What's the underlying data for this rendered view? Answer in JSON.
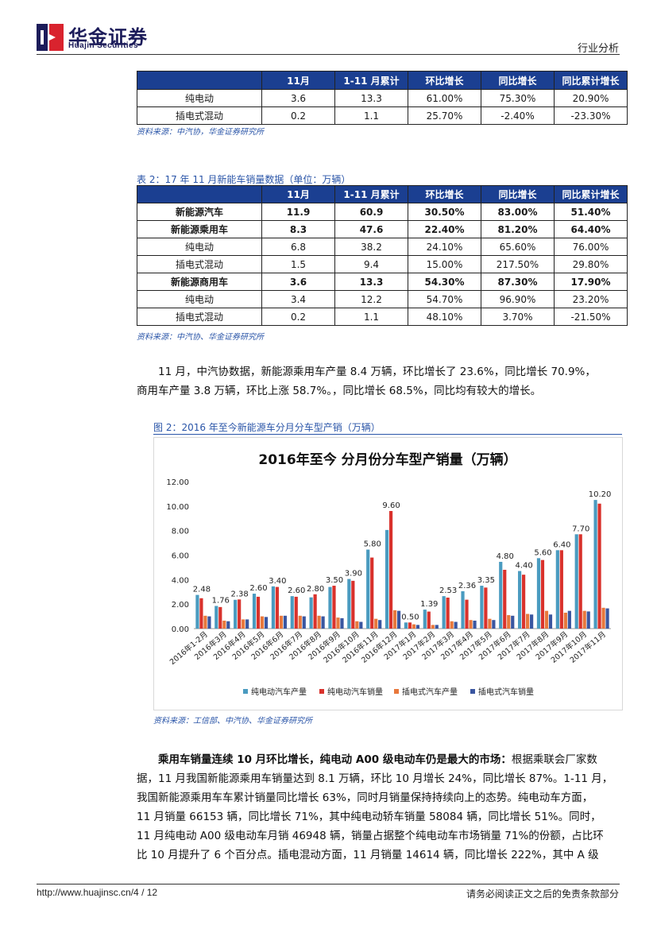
{
  "header": {
    "logo_cn": "华金证券",
    "logo_en": "Huajin Securities",
    "report_type": "行业分析"
  },
  "table1": {
    "columns": [
      "",
      "11月",
      "1-11 月累计",
      "环比增长",
      "同比增长",
      "同比累计增长"
    ],
    "rows": [
      {
        "label": "纯电动",
        "values": [
          "3.6",
          "13.3",
          "61.00%",
          "75.30%",
          "20.90%"
        ]
      },
      {
        "label": "插电式混动",
        "values": [
          "0.2",
          "1.1",
          "25.70%",
          "-2.40%",
          "-23.30%"
        ]
      }
    ],
    "source": "资料来源：中汽协，华金证券研究所"
  },
  "table2": {
    "caption": "表 2：17 年 11 月新能车销量数据（单位：万辆）",
    "columns": [
      "",
      "11月",
      "1-11 月累计",
      "环比增长",
      "同比增长",
      "同比累计增长"
    ],
    "rows": [
      {
        "label": "新能源汽车",
        "values": [
          "11.9",
          "60.9",
          "30.50%",
          "83.00%",
          "51.40%"
        ]
      },
      {
        "label": "新能源乘用车",
        "values": [
          "8.3",
          "47.6",
          "22.40%",
          "81.20%",
          "64.40%"
        ]
      },
      {
        "label": "纯电动",
        "values": [
          "6.8",
          "38.2",
          "24.10%",
          "65.60%",
          "76.00%"
        ]
      },
      {
        "label": "插电式混动",
        "values": [
          "1.5",
          "9.4",
          "15.00%",
          "217.50%",
          "29.80%"
        ]
      },
      {
        "label": "新能源商用车",
        "values": [
          "3.6",
          "13.3",
          "54.30%",
          "87.30%",
          "17.90%"
        ]
      },
      {
        "label": "纯电动",
        "values": [
          "3.4",
          "12.2",
          "54.70%",
          "96.90%",
          "23.20%"
        ]
      },
      {
        "label": "插电式混动",
        "values": [
          "0.2",
          "1.1",
          "48.10%",
          "3.70%",
          "-21.50%"
        ]
      }
    ],
    "source": "资料来源：中汽协、华金证券研究所"
  },
  "para1": {
    "line1": "11 月，中汽协数据，新能源乘用车产量 8.4 万辆，环比增长了 23.6%，同比增长 70.9%，",
    "line2": "商用车产量 3.8 万辆，环比上涨 58.7%。，同比增长 68.5%，同比均有较大的增长。"
  },
  "figure": {
    "caption": "图 2：2016 年至今新能源车分月分车型产销（万辆）",
    "source": "资料来源：工信部、中汽协、华金证券研究所"
  },
  "chart_data": {
    "type": "bar",
    "title": "2016年至今 分月份分车型产销量（万辆）",
    "categories": [
      "2016年1-2月",
      "2016年3月",
      "2016年4月",
      "2016年5月",
      "2016年6月",
      "2016年7月",
      "2016年8月",
      "2016年9月",
      "2016年10月",
      "2016年11月",
      "2016年12月",
      "2017年1月",
      "2017年2月",
      "2017年3月",
      "2017年4月",
      "2017年5月",
      "2017年6月",
      "2017年7月",
      "2017年8月",
      "2017年9月",
      "2017年10月",
      "2017年11月"
    ],
    "series": [
      {
        "name": "纯电动汽车产量",
        "color": "#4a9bc0",
        "values": [
          2.75,
          1.85,
          2.35,
          2.85,
          3.45,
          2.65,
          2.55,
          3.4,
          4.05,
          6.45,
          8.05,
          0.5,
          1.55,
          2.65,
          3.05,
          3.5,
          5.45,
          4.7,
          5.75,
          6.4,
          7.7,
          10.5
        ]
      },
      {
        "name": "纯电动汽车销量",
        "color": "#d9322c",
        "values": [
          2.48,
          1.76,
          2.38,
          2.6,
          3.4,
          2.6,
          2.8,
          3.5,
          3.9,
          5.8,
          9.6,
          0.5,
          1.39,
          2.53,
          2.36,
          3.35,
          4.8,
          4.4,
          5.6,
          6.4,
          7.7,
          10.2
        ]
      },
      {
        "name": "插电式汽车产量",
        "color": "#e8783c",
        "values": [
          1.05,
          0.65,
          0.75,
          1.0,
          1.05,
          1.05,
          1.05,
          0.9,
          0.6,
          0.8,
          1.5,
          0.35,
          0.3,
          0.6,
          0.7,
          0.8,
          1.1,
          1.2,
          1.45,
          1.3,
          1.45,
          1.7
        ]
      },
      {
        "name": "插电式汽车销量",
        "color": "#3a56a0",
        "values": [
          1.0,
          0.6,
          0.75,
          0.95,
          1.05,
          1.0,
          1.0,
          0.85,
          0.55,
          0.7,
          1.45,
          0.3,
          0.3,
          0.55,
          0.65,
          0.7,
          1.05,
          1.15,
          1.15,
          1.45,
          1.4,
          1.65
        ]
      }
    ],
    "data_labels": [
      "2.48",
      "1.76",
      "2.38",
      "2.60",
      "3.40",
      "2.60",
      "2.80",
      "3.50",
      "3.90",
      "5.80",
      "9.60",
      "0.50",
      "1.39",
      "2.53",
      "2.36",
      "3.35",
      "4.80",
      "4.40",
      "5.60",
      "6.40",
      "7.70",
      "10.20"
    ],
    "y_ticks": [
      "0.00",
      "2.00",
      "4.00",
      "6.00",
      "8.00",
      "10.00",
      "12.00"
    ],
    "ylim": [
      0,
      12
    ],
    "grid": false,
    "legend": "bottom"
  },
  "para2": {
    "lead": "乘用车销量连续 10 月环比增长，纯电动 A00 级电动车仍是最大的市场：",
    "lines": [
      "根据乘联会厂家数",
      "据，11 月我国新能源乘用车销量达到 8.1 万辆，环比 10 月增长 24%，同比增长 87%。1-11 月，",
      "我国新能源乘用车车累计销量同比增长 63%，同时月销量保持持续向上的态势。纯电动车方面，",
      "11 月销量 66153 辆，同比增长 71%，其中纯电动轿车销量 58084 辆，同比增长 51%。同时，",
      "11 月纯电动 A00 级电动车月销 46948 辆，销量占据整个纯电动车市场销量 71%的份额，占比环",
      "比 10 月提升了 6 个百分点。插电混动方面，11 月销量 14614 辆，同比增长 222%，其中 A 级"
    ]
  },
  "footer": {
    "url": "http://www.huajinsc.cn/4 / 12",
    "disclaimer": "请务必阅读正文之后的免责条款部分"
  }
}
